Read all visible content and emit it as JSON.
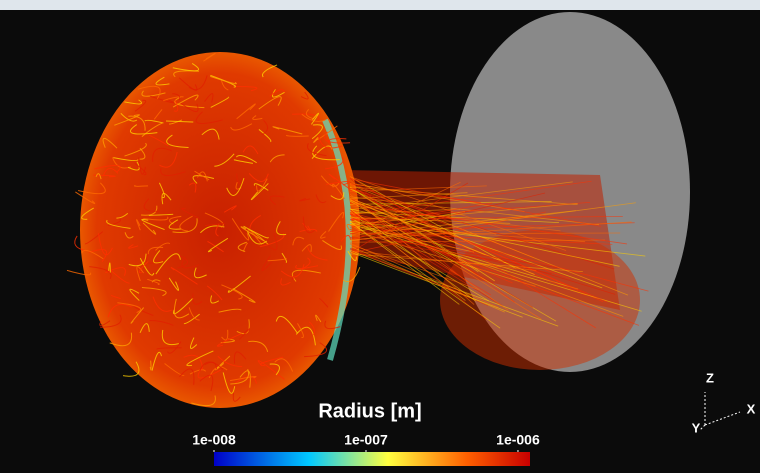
{
  "colorbar": {
    "title": "Radius [m]",
    "scale": "log",
    "limits": [
      1e-08,
      1.2e-06
    ],
    "ticks": [
      {
        "value": 1e-08,
        "label": "1e-008"
      },
      {
        "value": 1e-07,
        "label": "1e-007"
      },
      {
        "value": 1e-06,
        "label": "1e-006"
      }
    ]
  },
  "axes_triad": {
    "z": "Z",
    "y": "Y",
    "x": "X"
  }
}
